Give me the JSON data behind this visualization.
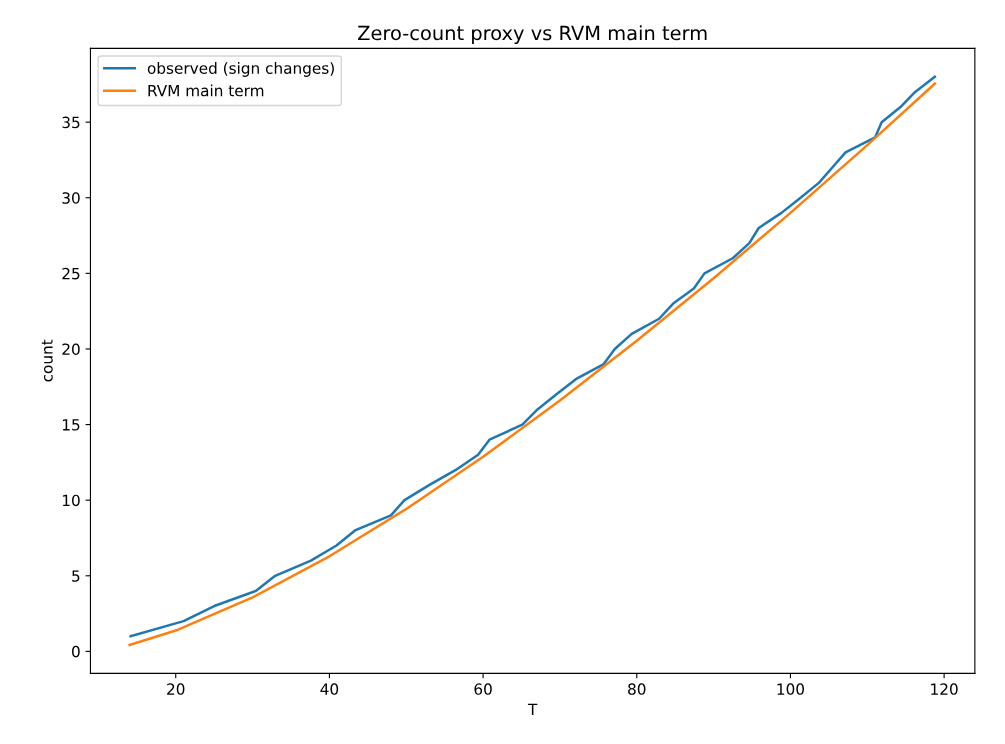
{
  "chart_data": {
    "type": "line",
    "title": "Zero-count proxy vs RVM main term",
    "xlabel": "T",
    "ylabel": "count",
    "series": [
      {
        "name": "observed (sign changes)",
        "color": "#1f77b4",
        "x": [
          14.13,
          21.02,
          25.01,
          30.42,
          32.94,
          37.59,
          40.92,
          43.33,
          48.01,
          49.77,
          52.97,
          56.45,
          59.35,
          60.83,
          65.11,
          67.08,
          69.55,
          72.07,
          75.7,
          77.14,
          79.34,
          82.91,
          84.74,
          87.43,
          88.81,
          92.49,
          94.65,
          95.87,
          98.83,
          101.32,
          103.73,
          105.45,
          107.17,
          111.03,
          111.87,
          114.32,
          116.23,
          118.79
        ],
        "values": [
          1,
          2,
          3,
          4,
          5,
          6,
          7,
          8,
          9,
          10,
          11,
          12,
          13,
          14,
          15,
          16,
          17,
          18,
          19,
          20,
          21,
          22,
          23,
          24,
          25,
          26,
          27,
          28,
          29,
          30,
          31,
          32,
          33,
          34,
          35,
          36,
          37,
          38
        ]
      },
      {
        "name": "RVM main term",
        "color": "#ff7f0e",
        "x": [
          14,
          20,
          30,
          40,
          50,
          60,
          70,
          80,
          90,
          100,
          110,
          118.8
        ],
        "values": [
          0.43,
          1.38,
          3.57,
          6.29,
          9.42,
          12.87,
          16.59,
          20.54,
          24.68,
          29.0,
          33.48,
          37.55
        ]
      }
    ],
    "xlim": [
      8.9,
      124.0
    ],
    "ylim": [
      -1.45,
      39.88
    ],
    "xticks": [
      20,
      40,
      60,
      80,
      100,
      120
    ],
    "yticks": [
      0,
      5,
      10,
      15,
      20,
      25,
      30,
      35
    ],
    "legend": "top left",
    "grid": false
  }
}
